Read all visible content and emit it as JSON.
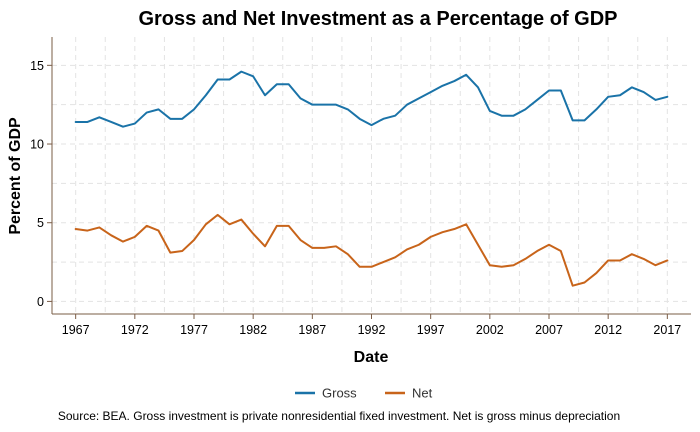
{
  "chart_data": {
    "type": "line",
    "title": "Gross and Net Investment as a Percentage of GDP",
    "xlabel": "Date",
    "ylabel": "Percent of GDP",
    "caption": "Source: BEA. Gross investment is private nonresidential fixed investment. Net is gross minus depreciation",
    "xlim": [
      1965,
      2019
    ],
    "ylim": [
      -0.8,
      16.8
    ],
    "x_ticks": [
      1967,
      1972,
      1977,
      1982,
      1987,
      1992,
      1997,
      2002,
      2007,
      2012,
      2017
    ],
    "y_ticks": [
      0,
      5,
      10,
      15
    ],
    "grid": true,
    "legend_position": "bottom",
    "x": [
      1967,
      1968,
      1969,
      1970,
      1971,
      1972,
      1973,
      1974,
      1975,
      1976,
      1977,
      1978,
      1979,
      1980,
      1981,
      1982,
      1983,
      1984,
      1985,
      1986,
      1987,
      1988,
      1989,
      1990,
      1991,
      1992,
      1993,
      1994,
      1995,
      1996,
      1997,
      1998,
      1999,
      2000,
      2001,
      2002,
      2003,
      2004,
      2005,
      2006,
      2007,
      2008,
      2009,
      2010,
      2011,
      2012,
      2013,
      2014,
      2015,
      2016,
      2017
    ],
    "series": [
      {
        "name": "Gross",
        "color": "#1a73a8",
        "values": [
          11.4,
          11.4,
          11.7,
          11.4,
          11.1,
          11.3,
          12.0,
          12.2,
          11.6,
          11.6,
          12.2,
          13.1,
          14.1,
          14.1,
          14.6,
          14.3,
          13.1,
          13.8,
          13.8,
          12.9,
          12.5,
          12.5,
          12.5,
          12.2,
          11.6,
          11.2,
          11.6,
          11.8,
          12.5,
          12.9,
          13.3,
          13.7,
          14.0,
          14.4,
          13.6,
          12.1,
          11.8,
          11.8,
          12.2,
          12.8,
          13.4,
          13.4,
          11.5,
          11.5,
          12.2,
          13.0,
          13.1,
          13.6,
          13.3,
          12.8,
          13.0
        ]
      },
      {
        "name": "Net",
        "color": "#c8641a",
        "values": [
          4.6,
          4.5,
          4.7,
          4.2,
          3.8,
          4.1,
          4.8,
          4.5,
          3.1,
          3.2,
          3.9,
          4.9,
          5.5,
          4.9,
          5.2,
          4.3,
          3.5,
          4.8,
          4.8,
          3.9,
          3.4,
          3.4,
          3.5,
          3.0,
          2.2,
          2.2,
          2.5,
          2.8,
          3.3,
          3.6,
          4.1,
          4.4,
          4.6,
          4.9,
          3.6,
          2.3,
          2.2,
          2.3,
          2.7,
          3.2,
          3.6,
          3.2,
          1.0,
          1.2,
          1.8,
          2.6,
          2.6,
          3.0,
          2.7,
          2.3,
          2.6
        ]
      }
    ]
  }
}
